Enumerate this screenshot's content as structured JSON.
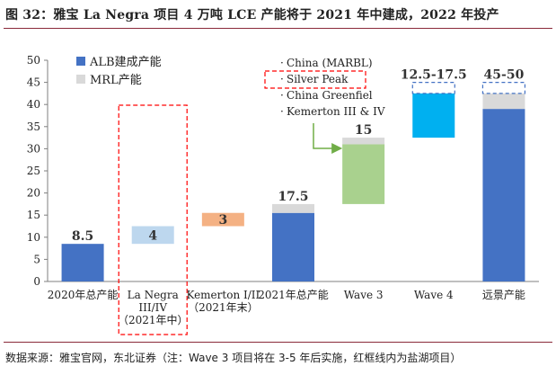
{
  "figure_title": "图 32：雅宝 La Negra 项目 4 万吨 LCE 产能将于 2021 年中建成，2022 年投产",
  "source_note": "数据来源：雅宝官网，东北证券（注：Wave 3 项目将在 3-5 年后实施，红框线内为盐湖项目）",
  "colors": {
    "alb_capacity": "#4472C4",
    "mrl_capacity": "#D9D9D9",
    "la_negra": "#BDD7EE",
    "kemerton": "#F4B183",
    "wave3": "#A9D18E",
    "wave4": "#00B0F0",
    "highlight_box": "#FF0000",
    "range_box": "#4472C4",
    "arrow": "#70AD47",
    "title_rule": "#8A2A3A"
  },
  "chart_data": {
    "type": "bar",
    "categories": [
      "2020年总产能",
      "La Negra III/IV（2021年中）",
      "Kemerton I/II（2021年末）",
      "2021年总产能",
      "Wave 3",
      "Wave 4",
      "远景产能"
    ],
    "category_label_lines": [
      [
        "2020年总产能"
      ],
      [
        "La Negra",
        "III/IV",
        "（2021年中）"
      ],
      [
        "Kemerton I/II",
        "（2021年末）"
      ],
      [
        "2021年总产能"
      ],
      [
        "Wave 3"
      ],
      [
        "Wave 4"
      ],
      [
        "远景产能"
      ]
    ],
    "ylim": [
      0,
      50
    ],
    "yticks": [
      0,
      5,
      10,
      15,
      20,
      25,
      30,
      35,
      40,
      45,
      50
    ],
    "legend": [
      "ALB建成产能",
      "MRL产能"
    ],
    "legend_position": "top-left",
    "bars": [
      {
        "category": "2020年总产能",
        "segments": [
          {
            "kind": "alb_capacity",
            "from": 0,
            "to": 8.5
          }
        ],
        "label": "8.5"
      },
      {
        "category": "La Negra III/IV（2021年中）",
        "segments": [
          {
            "kind": "la_negra",
            "from": 8.5,
            "to": 12.5
          }
        ],
        "label": "4",
        "label_inside": true,
        "highlighted": true
      },
      {
        "category": "Kemerton I/II（2021年末）",
        "segments": [
          {
            "kind": "kemerton",
            "from": 12.5,
            "to": 15.5
          }
        ],
        "label": "3",
        "label_inside": true
      },
      {
        "category": "2021年总产能",
        "segments": [
          {
            "kind": "alb_capacity",
            "from": 0,
            "to": 15.5
          },
          {
            "kind": "mrl_capacity",
            "from": 15.5,
            "to": 17.5
          }
        ],
        "label": "17.5"
      },
      {
        "category": "Wave 3",
        "segments": [
          {
            "kind": "wave3",
            "from": 17.5,
            "to": 31
          },
          {
            "kind": "mrl_capacity",
            "from": 31,
            "to": 32.5
          }
        ],
        "label": "15"
      },
      {
        "category": "Wave 4",
        "segments": [
          {
            "kind": "wave4",
            "from": 32.5,
            "to": 42.5
          }
        ],
        "range_to": 45,
        "label": "12.5-17.5"
      },
      {
        "category": "远景产能",
        "segments": [
          {
            "kind": "alb_capacity",
            "from": 0,
            "to": 39
          },
          {
            "kind": "mrl_capacity",
            "from": 39,
            "to": 42.5
          }
        ],
        "range_to": 45,
        "label": "45-50"
      }
    ],
    "annotation": {
      "items": [
        "China (MARBL)",
        "Silver Peak",
        "China Greenfiel",
        "Kemerton III & IV"
      ],
      "highlighted_item": "Silver Peak",
      "bullet": "·",
      "points_to": "Wave 3"
    }
  }
}
